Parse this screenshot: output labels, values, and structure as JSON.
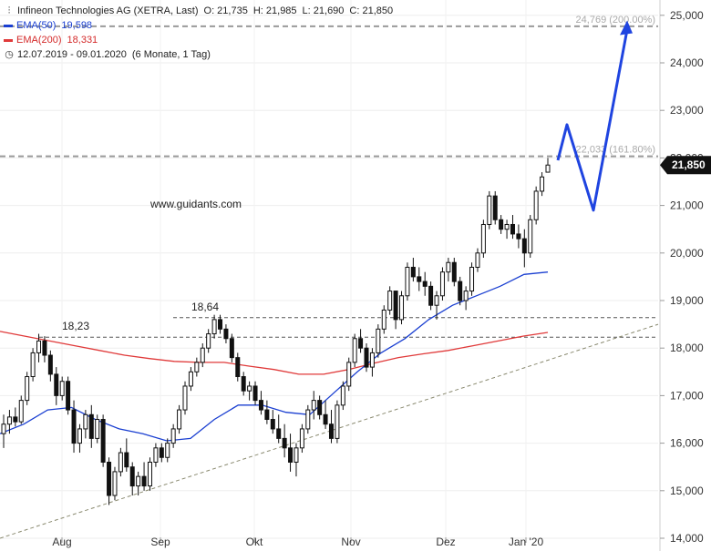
{
  "legend": {
    "instrument": "Infineon Technologies AG (XETRA, Last)",
    "open": "O: 21,735",
    "high": "H: 21,985",
    "low": "L: 21,690",
    "close": "C: 21,850",
    "ema50_label": "EMA(50)",
    "ema50_value": "19,598",
    "ema200_label": "EMA(200)",
    "ema200_value": "18,331",
    "period": "12.07.2019 - 09.01.2020",
    "period_detail": "(6 Monate, 1 Tag)"
  },
  "colors": {
    "ema50": "#1a3fd1",
    "ema200": "#e03a3a",
    "projection": "#1f44e0",
    "candle": "#111111",
    "fib": "#999999",
    "trend": "#8a8a70",
    "price_tag": "#111111"
  },
  "chart_data": {
    "type": "candlestick",
    "watermark": "www.guidants.com",
    "y_axis": {
      "min": 14000,
      "max": 25000,
      "ticks": [
        "14,000",
        "15,000",
        "16,000",
        "17,000",
        "18,000",
        "19,000",
        "20,000",
        "21,000",
        "22,000",
        "23,000",
        "24,000",
        "25,000"
      ]
    },
    "x_axis": {
      "labels": [
        "Aug",
        "Sep",
        "Okt",
        "Nov",
        "Dez",
        "Jan '20"
      ]
    },
    "last_price": {
      "value": 21.85,
      "label": "21,850"
    },
    "fib_levels": [
      {
        "value": 24.769,
        "label": "24,769 (200.00%)"
      },
      {
        "value": 22.033,
        "label": "22,033 (161.80%)"
      }
    ],
    "horizontal_levels": [
      {
        "value": 18.64,
        "label": "18,64"
      },
      {
        "value": 18.23,
        "label": "18,23"
      }
    ],
    "trendline": {
      "start": {
        "date": "2019-07-12",
        "value": 14.0
      },
      "end": {
        "date": "2020-01-21",
        "value": 18.5
      }
    },
    "projection_path": [
      {
        "date": "2020-01-10",
        "value": 21.95
      },
      {
        "date": "2020-01-14",
        "value": 22.7
      },
      {
        "date": "2020-01-21",
        "value": 20.9
      },
      {
        "date": "2020-01-31",
        "value": 24.7
      }
    ],
    "series": [
      {
        "name": "EMA(50)",
        "closes": [
          16.2,
          16.4,
          16.7,
          16.75,
          16.5,
          16.3,
          16.2,
          16.05,
          16.1,
          16.5,
          16.8,
          16.8,
          16.65,
          16.6,
          17.05,
          17.5,
          17.9,
          18.2,
          18.6,
          18.9,
          19.1,
          19.3,
          19.55,
          19.6
        ]
      },
      {
        "name": "EMA(200)",
        "closes": [
          18.35,
          18.25,
          18.15,
          18.05,
          17.95,
          17.85,
          17.78,
          17.72,
          17.7,
          17.7,
          17.62,
          17.55,
          17.45,
          17.45,
          17.55,
          17.68,
          17.8,
          17.88,
          17.95,
          18.05,
          18.15,
          18.25,
          18.33
        ]
      }
    ],
    "candles": [
      [
        16.2,
        16.6,
        15.9,
        16.4
      ],
      [
        16.4,
        16.7,
        16.2,
        16.55
      ],
      [
        16.55,
        16.75,
        16.35,
        16.45
      ],
      [
        16.45,
        17.0,
        16.4,
        16.9
      ],
      [
        16.9,
        17.5,
        16.8,
        17.4
      ],
      [
        17.4,
        18.0,
        17.3,
        17.9
      ],
      [
        17.9,
        18.3,
        17.7,
        18.15
      ],
      [
        18.15,
        18.25,
        17.7,
        17.85
      ],
      [
        17.85,
        17.95,
        17.3,
        17.45
      ],
      [
        17.45,
        17.6,
        16.8,
        17.0
      ],
      [
        17.0,
        17.4,
        16.9,
        17.3
      ],
      [
        17.3,
        17.4,
        16.6,
        16.7
      ],
      [
        16.7,
        16.9,
        15.8,
        16.0
      ],
      [
        16.0,
        16.4,
        15.8,
        16.3
      ],
      [
        16.3,
        16.7,
        16.1,
        16.6
      ],
      [
        16.6,
        16.8,
        15.9,
        16.1
      ],
      [
        16.1,
        16.6,
        16.0,
        16.5
      ],
      [
        16.5,
        16.6,
        15.5,
        15.6
      ],
      [
        15.6,
        15.7,
        14.7,
        14.9
      ],
      [
        14.9,
        15.5,
        14.8,
        15.4
      ],
      [
        15.4,
        15.9,
        15.3,
        15.8
      ],
      [
        15.8,
        16.1,
        15.4,
        15.5
      ],
      [
        15.5,
        15.6,
        14.9,
        15.1
      ],
      [
        15.1,
        15.4,
        14.9,
        15.3
      ],
      [
        15.3,
        15.6,
        15.0,
        15.1
      ],
      [
        15.1,
        15.7,
        15.0,
        15.6
      ],
      [
        15.6,
        16.0,
        15.5,
        15.9
      ],
      [
        15.9,
        16.0,
        15.6,
        15.7
      ],
      [
        15.7,
        16.1,
        15.6,
        16.0
      ],
      [
        16.0,
        16.4,
        15.9,
        16.3
      ],
      [
        16.3,
        16.8,
        16.2,
        16.7
      ],
      [
        16.7,
        17.3,
        16.6,
        17.2
      ],
      [
        17.2,
        17.6,
        17.1,
        17.5
      ],
      [
        17.5,
        17.8,
        17.4,
        17.7
      ],
      [
        17.7,
        18.1,
        17.6,
        18.0
      ],
      [
        18.0,
        18.4,
        17.9,
        18.3
      ],
      [
        18.3,
        18.7,
        18.2,
        18.6
      ],
      [
        18.6,
        18.7,
        18.3,
        18.4
      ],
      [
        18.4,
        18.5,
        18.1,
        18.2
      ],
      [
        18.2,
        18.3,
        17.7,
        17.8
      ],
      [
        17.8,
        17.9,
        17.3,
        17.4
      ],
      [
        17.4,
        17.5,
        17.0,
        17.1
      ],
      [
        17.1,
        17.3,
        16.9,
        17.2
      ],
      [
        17.2,
        17.3,
        16.8,
        16.9
      ],
      [
        16.9,
        17.1,
        16.6,
        16.7
      ],
      [
        16.7,
        16.9,
        16.4,
        16.5
      ],
      [
        16.5,
        16.7,
        16.2,
        16.3
      ],
      [
        16.3,
        16.6,
        16.0,
        16.1
      ],
      [
        16.1,
        16.4,
        15.7,
        15.9
      ],
      [
        15.9,
        16.2,
        15.4,
        15.6
      ],
      [
        15.6,
        16.0,
        15.3,
        15.9
      ],
      [
        15.9,
        16.4,
        15.8,
        16.3
      ],
      [
        16.3,
        16.8,
        16.2,
        16.7
      ],
      [
        16.7,
        17.1,
        16.5,
        16.9
      ],
      [
        16.9,
        17.0,
        16.5,
        16.6
      ],
      [
        16.6,
        16.9,
        16.3,
        16.4
      ],
      [
        16.4,
        16.7,
        16.0,
        16.1
      ],
      [
        16.1,
        16.9,
        16.0,
        16.8
      ],
      [
        16.8,
        17.3,
        16.7,
        17.2
      ],
      [
        17.2,
        17.8,
        17.1,
        17.7
      ],
      [
        17.7,
        18.3,
        17.6,
        18.2
      ],
      [
        18.2,
        18.4,
        17.9,
        18.0
      ],
      [
        18.0,
        18.1,
        17.5,
        17.6
      ],
      [
        17.6,
        18.0,
        17.4,
        17.9
      ],
      [
        17.9,
        18.5,
        17.8,
        18.4
      ],
      [
        18.4,
        18.9,
        18.3,
        18.8
      ],
      [
        18.8,
        19.3,
        18.7,
        19.2
      ],
      [
        19.2,
        19.1,
        18.4,
        18.6
      ],
      [
        18.6,
        19.2,
        18.5,
        19.1
      ],
      [
        19.1,
        19.8,
        19.0,
        19.7
      ],
      [
        19.7,
        19.9,
        19.4,
        19.5
      ],
      [
        19.5,
        19.7,
        19.2,
        19.4
      ],
      [
        19.4,
        19.6,
        19.1,
        19.3
      ],
      [
        19.3,
        19.4,
        18.8,
        18.9
      ],
      [
        18.9,
        19.2,
        18.6,
        19.1
      ],
      [
        19.1,
        19.7,
        19.0,
        19.6
      ],
      [
        19.6,
        19.9,
        19.4,
        19.8
      ],
      [
        19.8,
        19.9,
        19.3,
        19.4
      ],
      [
        19.4,
        19.5,
        18.9,
        19.0
      ],
      [
        19.0,
        19.3,
        18.8,
        19.2
      ],
      [
        19.2,
        19.8,
        19.1,
        19.7
      ],
      [
        19.7,
        20.1,
        19.6,
        20.0
      ],
      [
        20.0,
        20.7,
        19.9,
        20.6
      ],
      [
        20.6,
        21.3,
        20.5,
        21.2
      ],
      [
        21.2,
        21.3,
        20.6,
        20.7
      ],
      [
        20.7,
        20.8,
        20.4,
        20.5
      ],
      [
        20.5,
        20.7,
        20.3,
        20.6
      ],
      [
        20.6,
        20.8,
        20.3,
        20.4
      ],
      [
        20.4,
        20.6,
        20.1,
        20.3
      ],
      [
        20.3,
        20.5,
        19.7,
        20.0
      ],
      [
        20.0,
        20.8,
        19.9,
        20.7
      ],
      [
        20.7,
        21.4,
        20.6,
        21.3
      ],
      [
        21.3,
        21.7,
        21.2,
        21.6
      ],
      [
        21.7,
        22.0,
        21.7,
        21.85
      ]
    ]
  }
}
